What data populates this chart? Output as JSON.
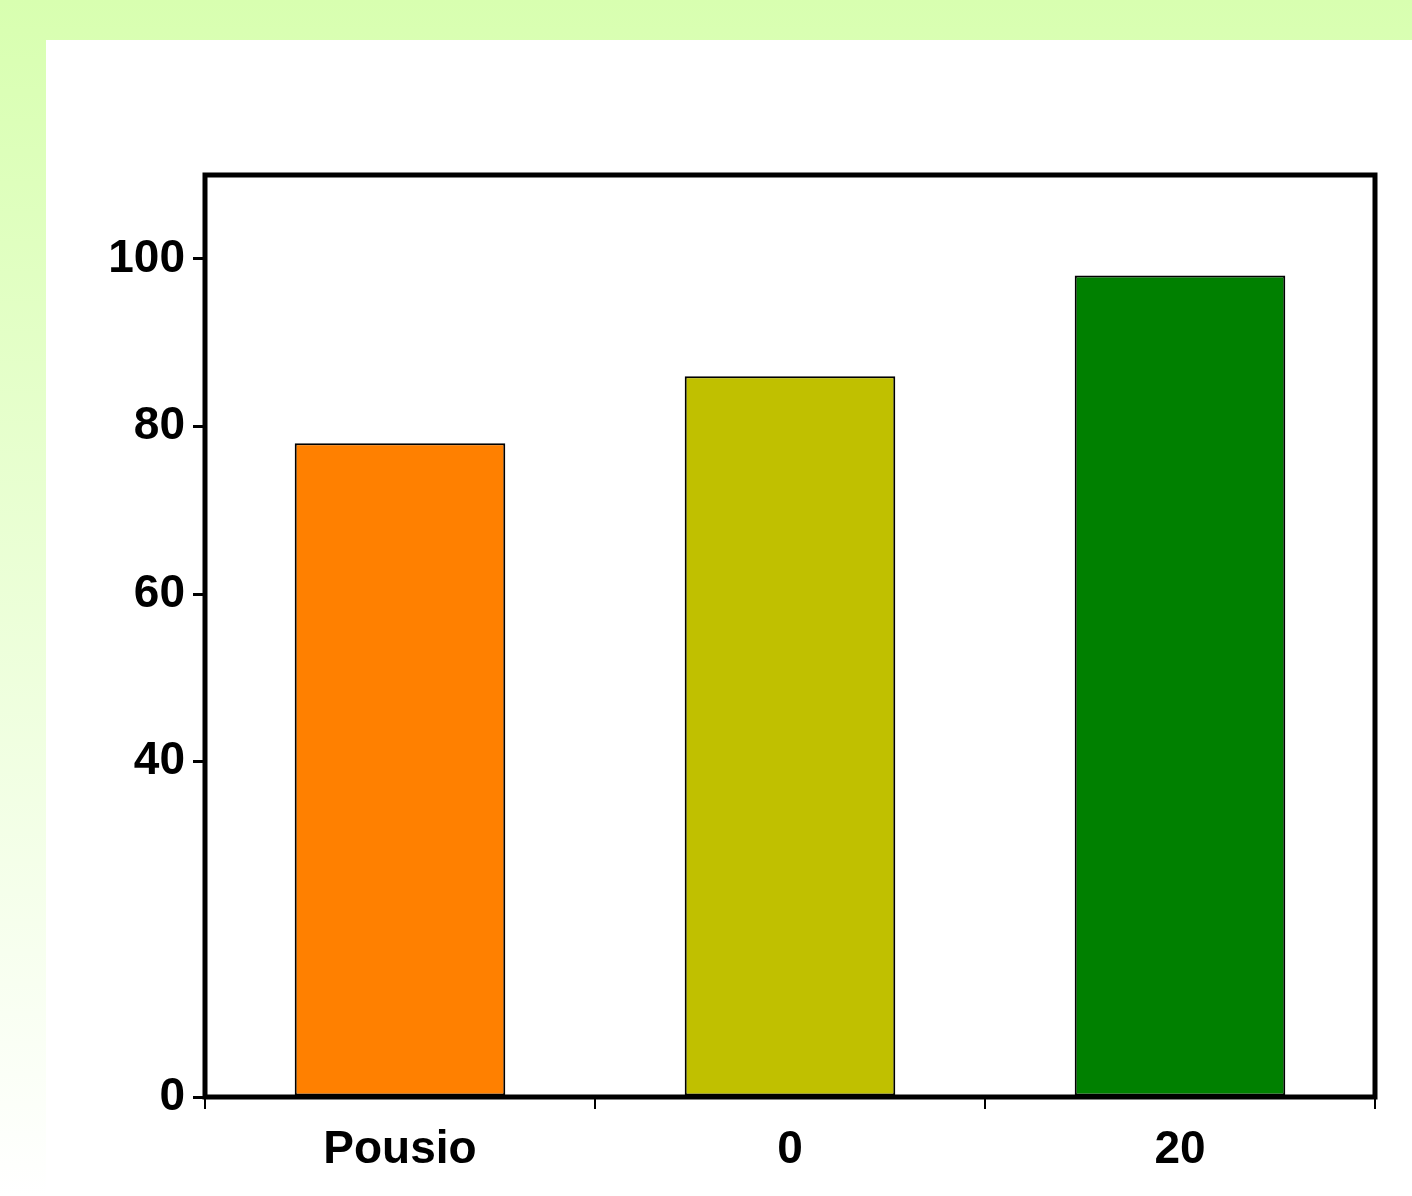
{
  "chart_data": {
    "type": "bar",
    "categories": [
      "Pousio",
      "0",
      "20"
    ],
    "values": [
      78,
      86,
      98
    ],
    "colors": [
      "#ff8000",
      "#c0c000",
      "#008000"
    ],
    "ylim": [
      0,
      110
    ],
    "yticks": [
      0,
      40,
      60,
      80,
      100
    ],
    "grid": false,
    "legend": false
  }
}
